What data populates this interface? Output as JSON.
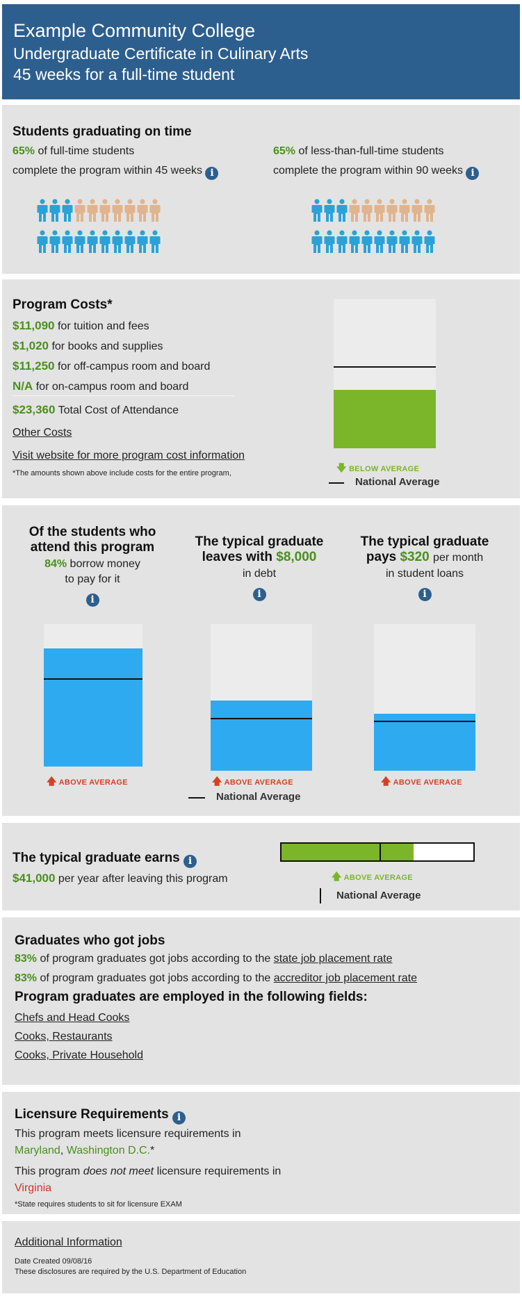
{
  "header": {
    "school": "Example Community College",
    "program": "Undergraduate Certificate in Culinary Arts",
    "length": "45 weeks for a full-time student"
  },
  "on_time": {
    "title": "Students graduating on time",
    "full_time_pct": "65%",
    "full_time_line1": "of full-time students",
    "full_time_line2": "complete the program within 45 weeks",
    "part_time_pct": "65%",
    "part_time_line1": "of less-than-full-time students",
    "part_time_line2": "complete the program within 90 weeks",
    "full_time_share": 0.65,
    "part_time_share": 0.65,
    "colors": {
      "graduated": "#2aa2d8",
      "not_graduated": "#e0b48e"
    }
  },
  "costs": {
    "title": "Program Costs*",
    "items": [
      {
        "amount": "$11,090",
        "label": "for tuition and fees"
      },
      {
        "amount": "$1,020",
        "label": "for books and supplies"
      },
      {
        "amount": "$11,250",
        "label": "for off-campus room and board"
      },
      {
        "amount": "N/A",
        "label": "for on-campus room and board"
      }
    ],
    "total_amount": "$23,360",
    "total_label": "Total Cost of Attendance",
    "other_costs_link": "Other Costs",
    "website_link": "Visit website for more program cost information",
    "footnote": "*The amounts shown above include costs for the entire program,",
    "bar": {
      "value_share": 0.39,
      "avg_share": 0.55,
      "color": "#7ab52a"
    },
    "flag": "BELOW AVERAGE",
    "legend": "National Average"
  },
  "debt": {
    "col1": {
      "title": "Of the students who attend this program",
      "pct": "84%",
      "line1": "borrow money",
      "line2": "to pay for it",
      "value_share": 0.83,
      "avg_share": 0.62
    },
    "col2": {
      "title_a": "The typical graduate",
      "title_b": "leaves with",
      "amount": "$8,000",
      "line": "in debt",
      "value_share": 0.48,
      "avg_share": 0.36
    },
    "col3": {
      "title_a": "The typical graduate",
      "title_b": "pays",
      "amount": "$320",
      "per": "per month",
      "line": "in student loans",
      "value_share": 0.39,
      "avg_share": 0.34
    },
    "flag": "ABOVE AVERAGE",
    "legend": "National Average",
    "bar_color": "#2eaaf0"
  },
  "earnings": {
    "title": "The typical graduate earns",
    "amount": "$41,000",
    "label": "per year after leaving this program",
    "bar": {
      "value_share": 0.69,
      "avg_share": 0.51,
      "color": "#7ab52a"
    },
    "flag": "ABOVE AVERAGE",
    "legend": "National Average"
  },
  "jobs": {
    "title": "Graduates who got jobs",
    "state_pct": "83%",
    "state_text": "of program graduates got jobs according to the",
    "state_link": "state job placement rate",
    "accr_pct": "83%",
    "accr_text": "of program graduates got jobs according to the",
    "accr_link": "accreditor job placement rate",
    "fields_title": "Program graduates are employed in the following fields:",
    "fields": [
      "Chefs and Head Cooks",
      "Cooks, Restaurants",
      "Cooks, Private Household"
    ]
  },
  "licensure": {
    "title": "Licensure Requirements",
    "meets_text": "This program meets licensure requirements in",
    "meets_states_a": "Maryland",
    "meets_states_b": "Washington D.C.",
    "meets_mark": "*",
    "not_text_a": "This program",
    "not_text_em": "does not meet",
    "not_text_b": "licensure requirements in",
    "not_states": "Virginia",
    "footnote": "*State requires students to sit for licensure EXAM"
  },
  "additional": {
    "link": "Additional Information",
    "date": "Date Created 09/08/16",
    "note": "These disclosures are required by the U.S. Department of Education"
  },
  "icons": {
    "info": "info-icon",
    "up": "arrow-up-icon",
    "down": "arrow-down-icon",
    "person": "person-icon"
  }
}
